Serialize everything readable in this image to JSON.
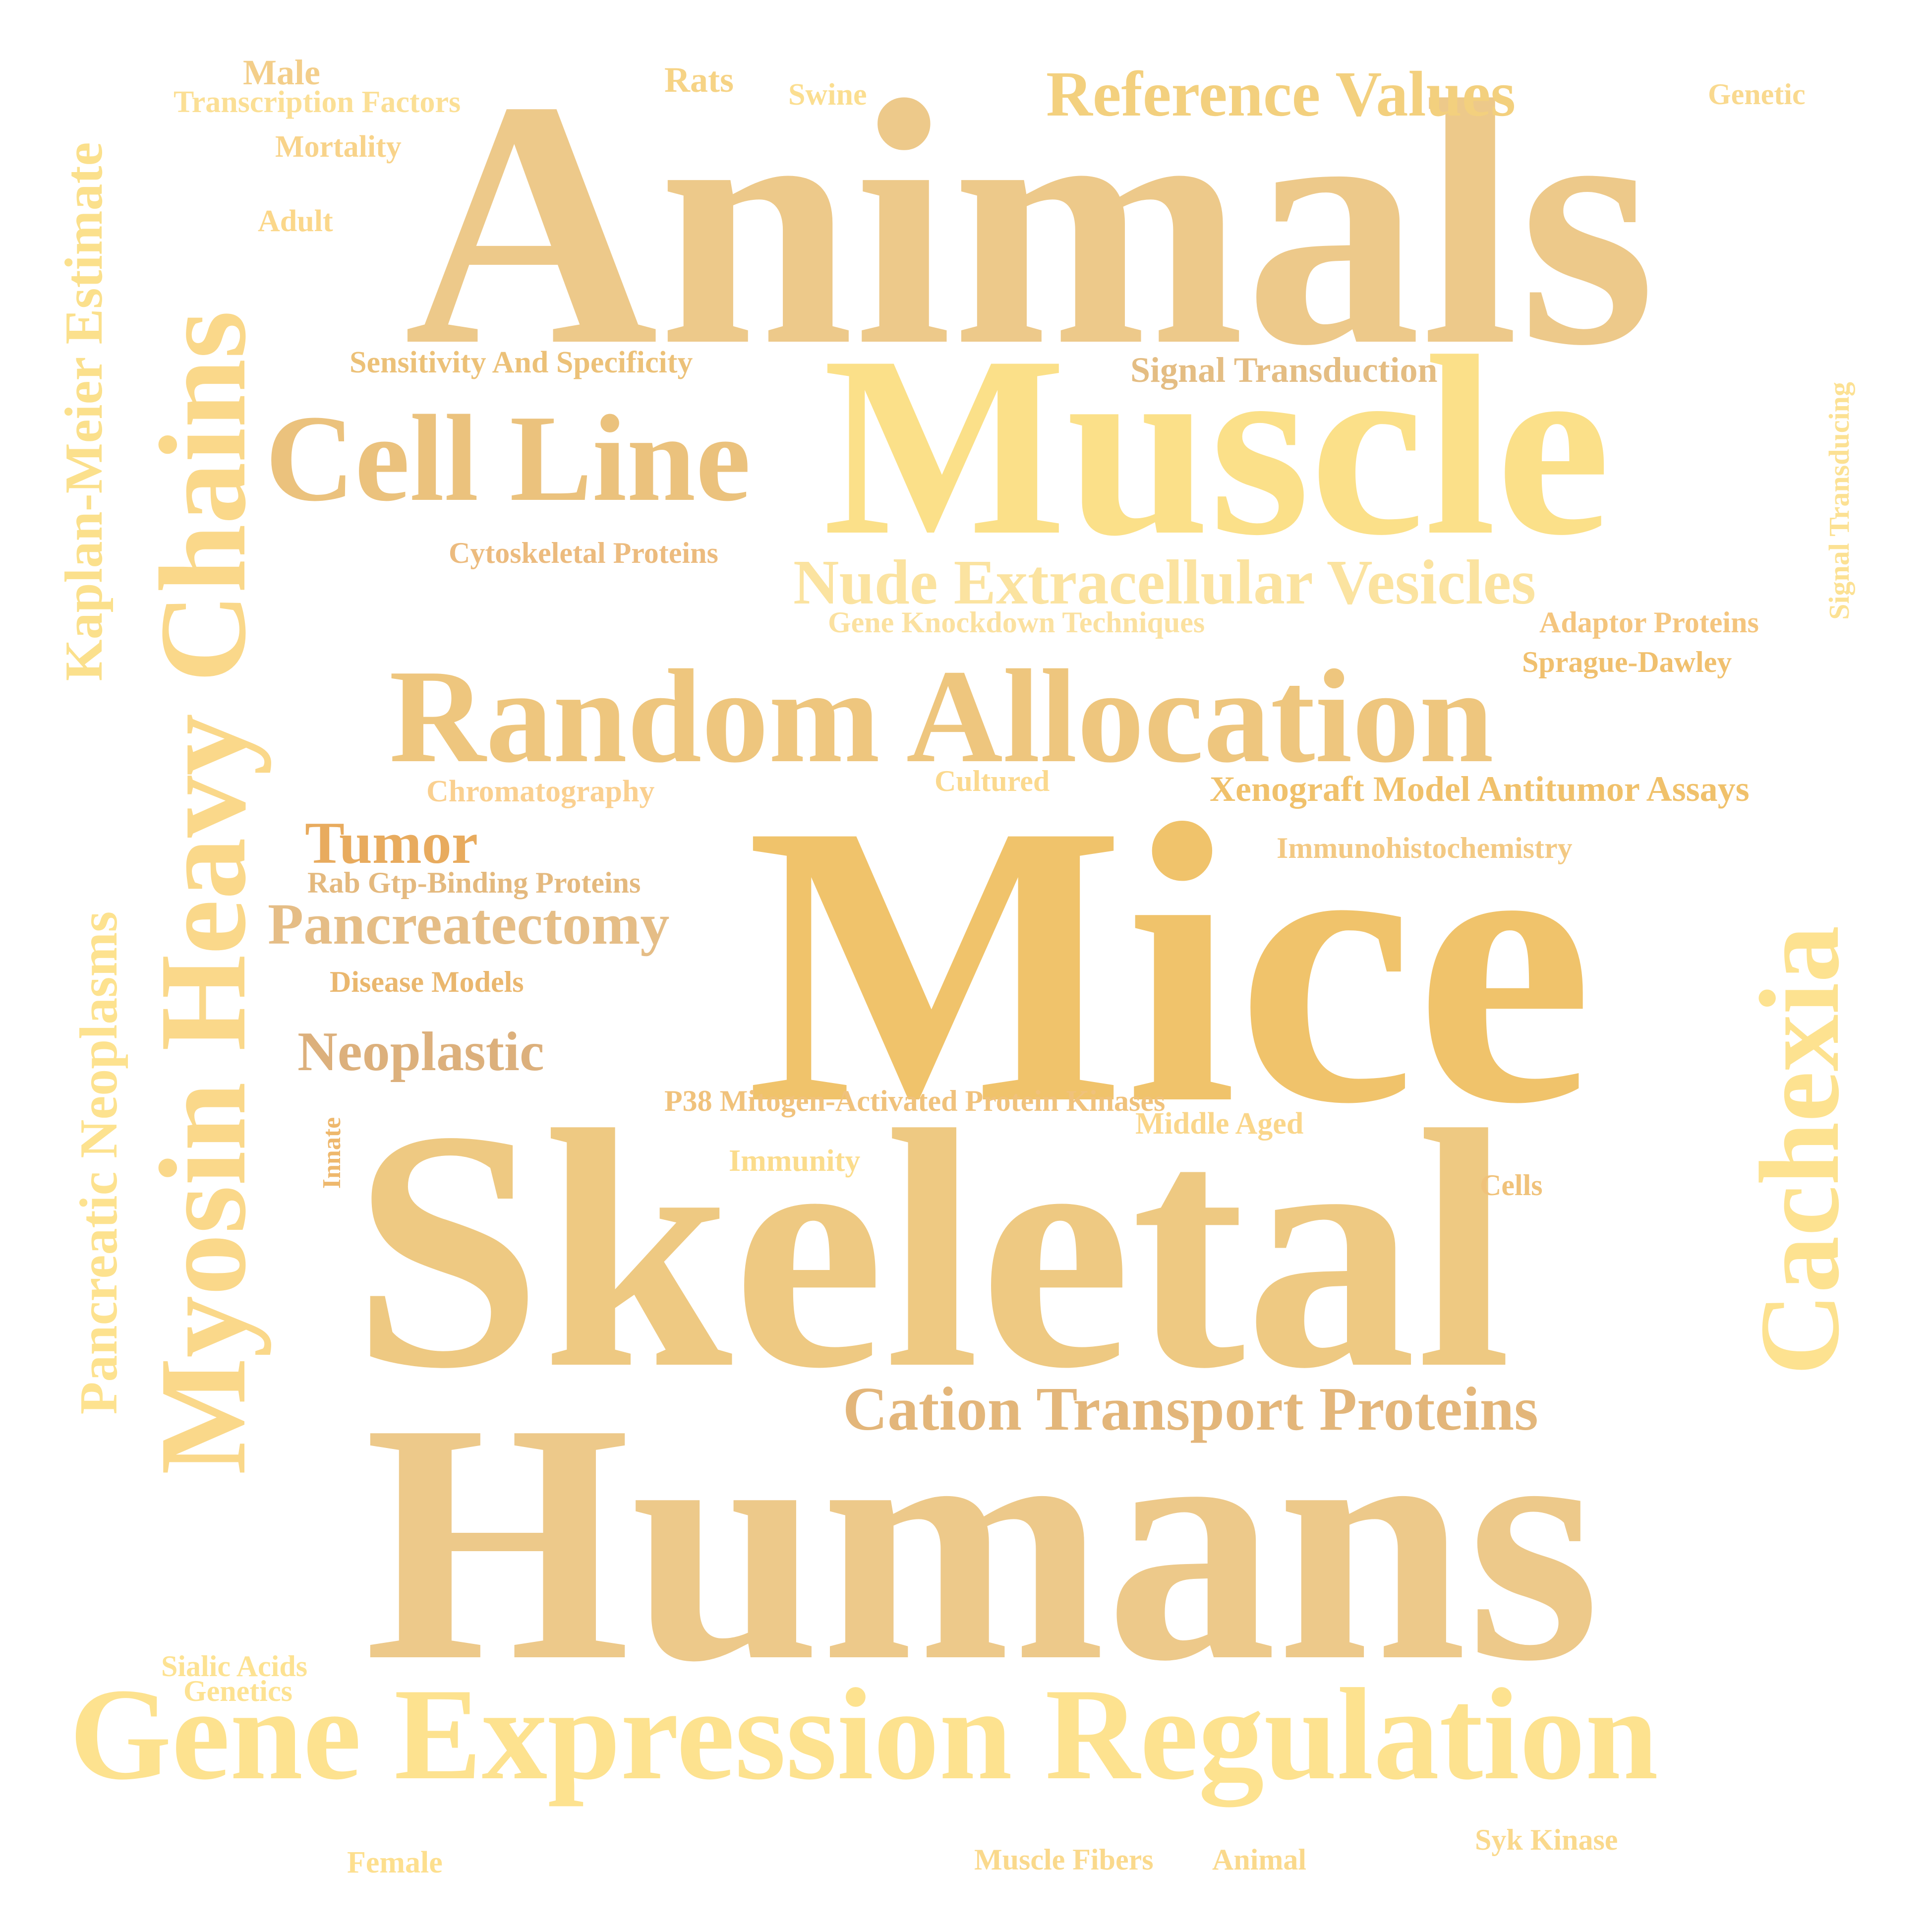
{
  "colors": {
    "background": "#ffffff",
    "palette": [
      "#edc98a",
      "#fbe089",
      "#f0c36b",
      "#e8b27a",
      "#f3ce7c",
      "#dcb07c",
      "#fad88a",
      "#e6bf79"
    ]
  },
  "words": [
    {
      "text": "Animals",
      "color": "#edc98a",
      "dir": "h"
    },
    {
      "text": "Muscle",
      "color": "#fbe089",
      "dir": "h"
    },
    {
      "text": "Mice",
      "color": "#f0c36b",
      "dir": "h"
    },
    {
      "text": "Skeletal",
      "color": "#eec982",
      "dir": "h"
    },
    {
      "text": "Humans",
      "color": "#edc98a",
      "dir": "h"
    },
    {
      "text": "Gene Expression Regulation",
      "color": "#fde28f",
      "dir": "h"
    },
    {
      "text": "Random Allocation",
      "color": "#eec67e",
      "dir": "h"
    },
    {
      "text": "Cell Line",
      "color": "#ebc27d",
      "dir": "h"
    },
    {
      "text": "Nude Extracellular Vesicles",
      "color": "#fbe3a0",
      "dir": "h"
    },
    {
      "text": "Reference Values",
      "color": "#f3d07e",
      "dir": "h"
    },
    {
      "text": "Cation Transport Proteins",
      "color": "#e3b67a",
      "dir": "h"
    },
    {
      "text": "Myosin Heavy Chains",
      "color": "#fad88a",
      "dir": "v"
    },
    {
      "text": "Kaplan-Meier Estimate",
      "color": "#fbe08c",
      "dir": "v"
    },
    {
      "text": "Pancreatic Neoplasms",
      "color": "#fde28f",
      "dir": "v"
    },
    {
      "text": "Cachexia",
      "color": "#fde290",
      "dir": "v"
    },
    {
      "text": "Signal Transducing",
      "color": "#fce193",
      "dir": "v"
    },
    {
      "text": "Innate",
      "color": "#eeb86d",
      "dir": "v"
    },
    {
      "text": "Pancreatectomy",
      "color": "#e5bd86",
      "dir": "h"
    },
    {
      "text": "Neoplastic",
      "color": "#dcb07c",
      "dir": "h"
    },
    {
      "text": "Tumor",
      "color": "#e8ab5e",
      "dir": "h"
    },
    {
      "text": "Rab Gtp-Binding Proteins",
      "color": "#e4b97e",
      "dir": "h"
    },
    {
      "text": "Disease Models",
      "color": "#eab76e",
      "dir": "h"
    },
    {
      "text": "Xenograft Model Antitumor Assays",
      "color": "#f0c16b",
      "dir": "h"
    },
    {
      "text": "Immunohistochemistry",
      "color": "#f3c983",
      "dir": "h"
    },
    {
      "text": "Signal Transduction",
      "color": "#e4bd83",
      "dir": "h"
    },
    {
      "text": "Sensitivity And Specificity",
      "color": "#ecc178",
      "dir": "h"
    },
    {
      "text": "Cytoskeletal Proteins",
      "color": "#ecbb7e",
      "dir": "h"
    },
    {
      "text": "Gene Knockdown Techniques",
      "color": "#fbe1a0",
      "dir": "h"
    },
    {
      "text": "Adaptor Proteins",
      "color": "#f4c57e",
      "dir": "h"
    },
    {
      "text": "Sprague-Dawley",
      "color": "#f0c06e",
      "dir": "h"
    },
    {
      "text": "Chromatography",
      "color": "#fad090",
      "dir": "h"
    },
    {
      "text": "Cultured",
      "color": "#fbd98e",
      "dir": "h"
    },
    {
      "text": "P38 Mitogen-Activated Protein Kinases",
      "color": "#f0c27c",
      "dir": "h"
    },
    {
      "text": "Middle Aged",
      "color": "#fad68a",
      "dir": "h"
    },
    {
      "text": "Immunity",
      "color": "#fbdc8c",
      "dir": "h"
    },
    {
      "text": "Cells",
      "color": "#f0c27a",
      "dir": "h"
    },
    {
      "text": "Male",
      "color": "#f3ce8a",
      "dir": "h"
    },
    {
      "text": "Transcription Factors",
      "color": "#fbdf95",
      "dir": "h"
    },
    {
      "text": "Mortality",
      "color": "#f8d38a",
      "dir": "h"
    },
    {
      "text": "Adult",
      "color": "#fbd78a",
      "dir": "h"
    },
    {
      "text": "Rats",
      "color": "#f6d385",
      "dir": "h"
    },
    {
      "text": "Swine",
      "color": "#fbde90",
      "dir": "h"
    },
    {
      "text": "Genetic",
      "color": "#f9d98e",
      "dir": "h"
    },
    {
      "text": "Sialic Acids",
      "color": "#fde292",
      "dir": "h"
    },
    {
      "text": "Genetics",
      "color": "#fde292",
      "dir": "h"
    },
    {
      "text": "Female",
      "color": "#fddf8e",
      "dir": "h"
    },
    {
      "text": "Muscle Fibers",
      "color": "#fad98c",
      "dir": "h"
    },
    {
      "text": "Animal",
      "color": "#fad98c",
      "dir": "h"
    },
    {
      "text": "Syk Kinase",
      "color": "#fad98c",
      "dir": "h"
    }
  ]
}
